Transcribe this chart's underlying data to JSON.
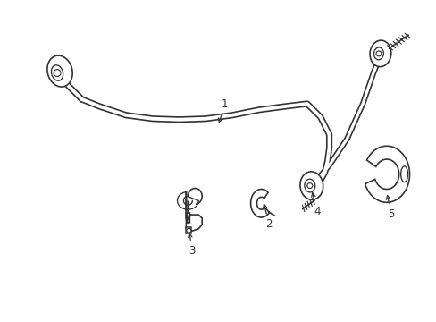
{
  "background_color": "#ffffff",
  "line_color": "#333333",
  "line_width": 1.2,
  "figsize": [
    4.89,
    3.6
  ],
  "dpi": 100
}
